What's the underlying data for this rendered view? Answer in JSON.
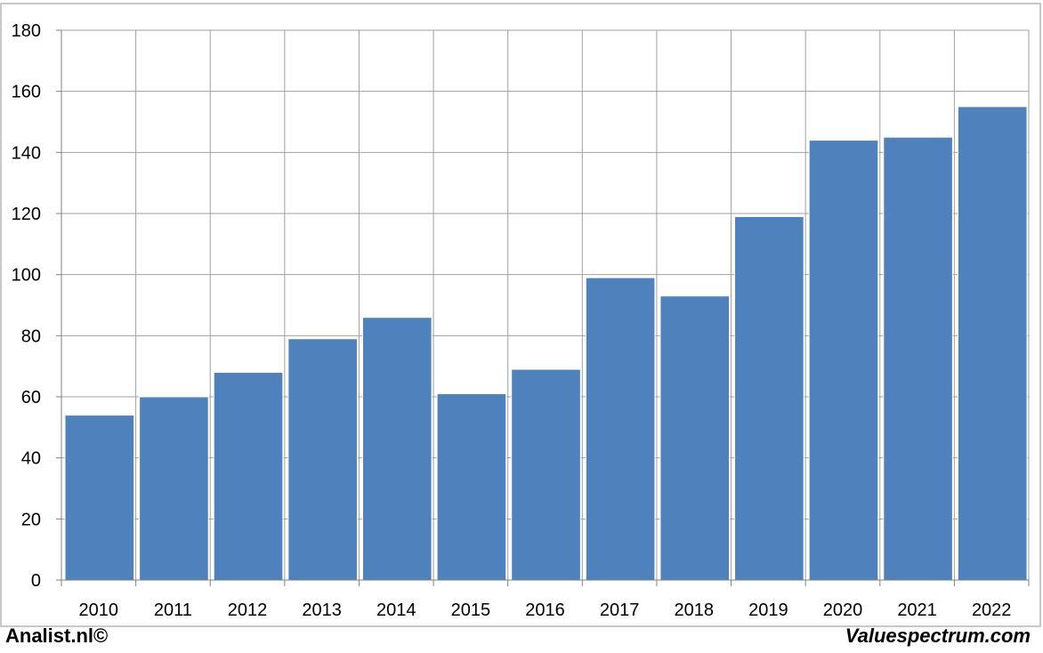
{
  "colors": {
    "bar": "#4f81bd",
    "grid": "#a0a0a0",
    "axis": "#808080",
    "border": "#c8c8c8",
    "text": "#000000"
  },
  "footer": {
    "left": "Analist.nl©",
    "right": "Valuespectrum.com"
  },
  "chart_data": {
    "type": "bar",
    "title": "",
    "xlabel": "",
    "ylabel": "",
    "categories": [
      "2010",
      "2011",
      "2012",
      "2013",
      "2014",
      "2015",
      "2016",
      "2017",
      "2018",
      "2019",
      "2020",
      "2021",
      "2022"
    ],
    "values": [
      54,
      60,
      68,
      79,
      86,
      61,
      69,
      99,
      93,
      119,
      144,
      145,
      155
    ],
    "ylim": [
      0,
      180
    ],
    "yticks": [
      0,
      20,
      40,
      60,
      80,
      100,
      120,
      140,
      160,
      180
    ],
    "grid": true,
    "legend": "none"
  }
}
